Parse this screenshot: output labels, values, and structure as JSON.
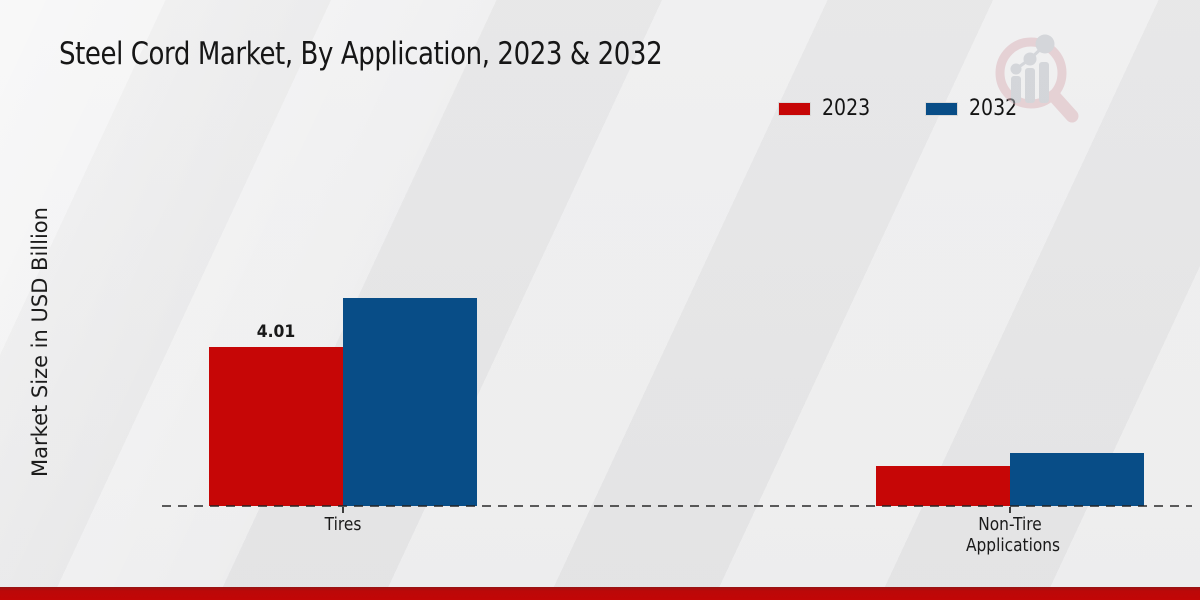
{
  "title": "Steel Cord Market, By Application, 2023 & 2032",
  "ylabel": "Market Size in USD Billion",
  "legend": {
    "items": [
      {
        "label": "2023",
        "color": "#c60606"
      },
      {
        "label": "2032",
        "color": "#084d87"
      }
    ]
  },
  "chart_data": {
    "type": "bar",
    "title": "Steel Cord Market, By Application, 2023 & 2032",
    "xlabel": "",
    "ylabel": "Market Size in USD Billion",
    "categories": [
      "Tires",
      "Non-Tire Applications"
    ],
    "series": [
      {
        "name": "2023",
        "color": "#c60606",
        "values": [
          4.01,
          1.01
        ]
      },
      {
        "name": "2032",
        "color": "#084d87",
        "values": [
          5.27,
          1.34
        ]
      }
    ],
    "bar_labels": [
      {
        "series_index": 0,
        "category_index": 0,
        "text": "4.01"
      }
    ],
    "ylim": [
      0,
      9
    ],
    "grid": false,
    "baseline_style": "dashed",
    "legend_position": "top-right",
    "units": "USD Billion"
  },
  "watermark": {
    "name": "market-research-logo"
  },
  "footer": {
    "bar_color": "#c20606"
  }
}
